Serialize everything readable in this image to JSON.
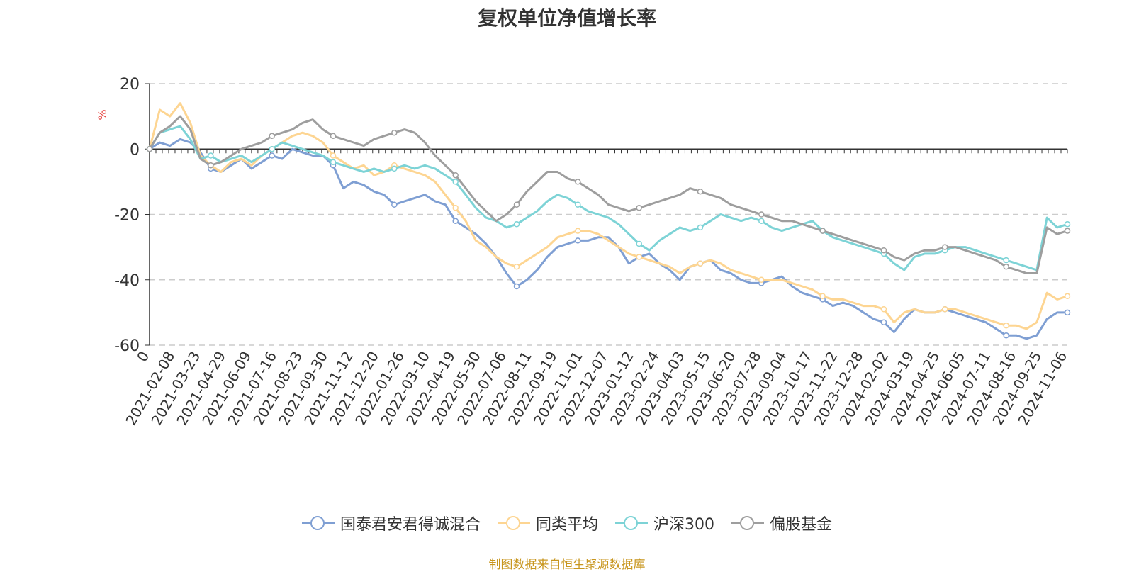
{
  "chart_data": {
    "type": "line",
    "title": "复权单位净值增长率",
    "ylabel": "%",
    "ylim": [
      -60,
      20
    ],
    "yticks": [
      20,
      0,
      -20,
      -40,
      -60
    ],
    "x_tick_labels": [
      "2021-02-08",
      "2021-03-23",
      "2021-04-29",
      "2021-06-09",
      "2021-07-16",
      "2021-08-23",
      "2021-09-30",
      "2021-11-12",
      "2021-12-20",
      "2022-01-26",
      "2022-03-10",
      "2022-04-19",
      "2022-05-30",
      "2022-07-06",
      "2022-08-11",
      "2022-09-19",
      "2022-11-01",
      "2022-12-07",
      "2023-01-12",
      "2023-02-24",
      "2023-04-03",
      "2023-05-15",
      "2023-06-20",
      "2023-07-28",
      "2023-09-04",
      "2023-10-17",
      "2023-11-22",
      "2023-12-28",
      "2024-02-02",
      "2024-03-19",
      "2024-04-25",
      "2024-06-05",
      "2024-07-11",
      "2024-08-16",
      "2024-09-25",
      "2024-11-06"
    ],
    "x_start_label": "0",
    "grid": "horizontal-dashed",
    "legend_position": "bottom",
    "series": [
      {
        "name": "国泰君安君得诚混合",
        "color": "#7f9fd3",
        "values": [
          0,
          2,
          1,
          3,
          2,
          -1,
          -6,
          -7,
          -5,
          -3,
          -6,
          -4,
          -2,
          -3,
          0,
          -1,
          -2,
          -2,
          -5,
          -12,
          -10,
          -11,
          -13,
          -14,
          -17,
          -16,
          -15,
          -14,
          -16,
          -17,
          -22,
          -24,
          -26,
          -29,
          -33,
          -38,
          -42,
          -40,
          -37,
          -33,
          -30,
          -29,
          -28,
          -28,
          -27,
          -27,
          -30,
          -35,
          -33,
          -32,
          -35,
          -37,
          -40,
          -36,
          -35,
          -34,
          -37,
          -38,
          -40,
          -41,
          -41,
          -40,
          -39,
          -42,
          -44,
          -45,
          -46,
          -48,
          -47,
          -48,
          -50,
          -52,
          -53,
          -56,
          -52,
          -49,
          -50,
          -50,
          -49,
          -50,
          -51,
          -52,
          -53,
          -55,
          -57,
          -57,
          -58,
          -57,
          -52,
          -50,
          -50
        ]
      },
      {
        "name": "同类平均",
        "color": "#fdd592",
        "values": [
          0,
          12,
          10,
          14,
          8,
          -2,
          -5,
          -7,
          -4,
          -3,
          -5,
          -2,
          0,
          2,
          4,
          5,
          4,
          2,
          -2,
          -4,
          -6,
          -5,
          -8,
          -7,
          -5,
          -6,
          -7,
          -8,
          -10,
          -14,
          -18,
          -22,
          -28,
          -30,
          -33,
          -35,
          -36,
          -34,
          -32,
          -30,
          -27,
          -26,
          -25,
          -25,
          -26,
          -28,
          -30,
          -32,
          -33,
          -34,
          -35,
          -36,
          -38,
          -36,
          -35,
          -34,
          -35,
          -37,
          -38,
          -39,
          -40,
          -40,
          -40,
          -41,
          -42,
          -43,
          -45,
          -46,
          -46,
          -47,
          -48,
          -48,
          -49,
          -53,
          -50,
          -49,
          -50,
          -50,
          -49,
          -49,
          -50,
          -51,
          -52,
          -53,
          -54,
          -54,
          -55,
          -53,
          -44,
          -46,
          -45
        ]
      },
      {
        "name": "沪深300",
        "color": "#7dd3d6",
        "values": [
          0,
          5,
          6,
          7,
          3,
          -3,
          -2,
          -4,
          -3,
          -2,
          -4,
          -2,
          0,
          2,
          1,
          0,
          -1,
          -2,
          -4,
          -5,
          -6,
          -7,
          -6,
          -7,
          -6,
          -5,
          -6,
          -5,
          -6,
          -8,
          -10,
          -14,
          -18,
          -21,
          -22,
          -24,
          -23,
          -21,
          -19,
          -16,
          -14,
          -15,
          -17,
          -19,
          -20,
          -21,
          -23,
          -26,
          -29,
          -31,
          -28,
          -26,
          -24,
          -25,
          -24,
          -22,
          -20,
          -21,
          -22,
          -21,
          -22,
          -24,
          -25,
          -24,
          -23,
          -22,
          -25,
          -27,
          -28,
          -29,
          -30,
          -31,
          -32,
          -35,
          -37,
          -33,
          -32,
          -32,
          -31,
          -30,
          -30,
          -31,
          -32,
          -33,
          -34,
          -35,
          -36,
          -37,
          -21,
          -24,
          -23
        ]
      },
      {
        "name": "偏股基金",
        "color": "#9e9e9e",
        "values": [
          0,
          5,
          7,
          10,
          6,
          -3,
          -5,
          -4,
          -2,
          0,
          1,
          2,
          4,
          5,
          6,
          8,
          9,
          6,
          4,
          3,
          2,
          1,
          3,
          4,
          5,
          6,
          5,
          2,
          -2,
          -5,
          -8,
          -12,
          -16,
          -19,
          -22,
          -20,
          -17,
          -13,
          -10,
          -7,
          -7,
          -9,
          -10,
          -12,
          -14,
          -17,
          -18,
          -19,
          -18,
          -17,
          -16,
          -15,
          -14,
          -12,
          -13,
          -14,
          -15,
          -17,
          -18,
          -19,
          -20,
          -21,
          -22,
          -22,
          -23,
          -24,
          -25,
          -26,
          -27,
          -28,
          -29,
          -30,
          -31,
          -33,
          -34,
          -32,
          -31,
          -31,
          -30,
          -30,
          -31,
          -32,
          -33,
          -34,
          -36,
          -37,
          -38,
          -38,
          -24,
          -26,
          -25
        ]
      }
    ]
  },
  "legend": {
    "items": [
      {
        "label": "国泰君安君得诚混合",
        "color": "#7f9fd3"
      },
      {
        "label": "同类平均",
        "color": "#fdd592"
      },
      {
        "label": "沪深300",
        "color": "#7dd3d6"
      },
      {
        "label": "偏股基金",
        "color": "#9e9e9e"
      }
    ]
  },
  "footer": {
    "source": "制图数据来自恒生聚源数据库"
  }
}
